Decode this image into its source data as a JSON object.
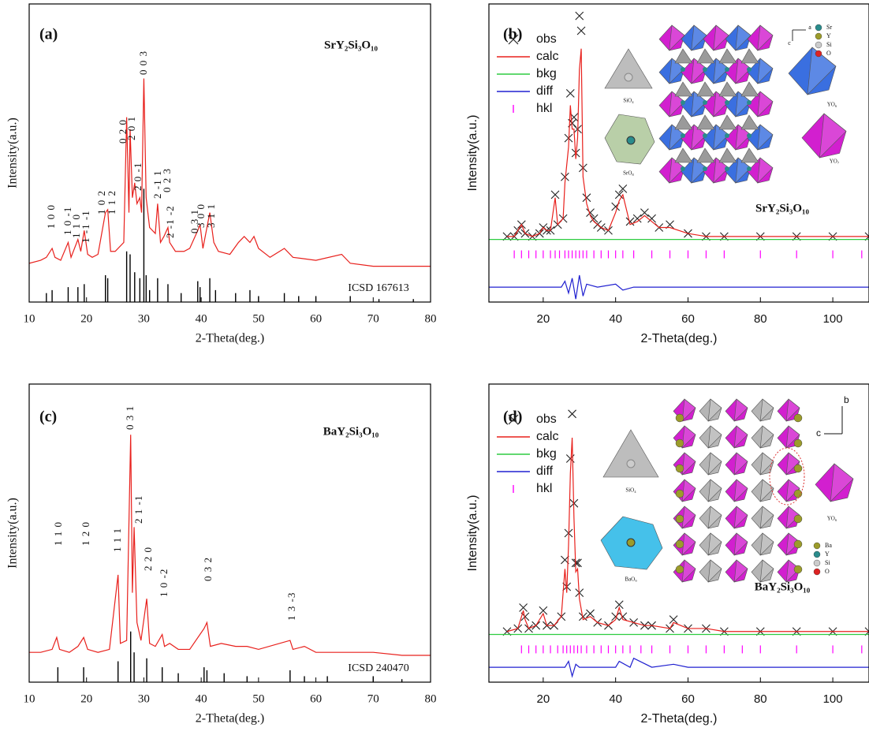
{
  "chart_data": [
    {
      "type": "line",
      "panel": "(a)",
      "title": "SrY₂Si₃O₁₀",
      "xlabel": "2-Theta(deg.)",
      "ylabel": "Intensity(a.u.)",
      "reference": "ICSD 167613",
      "xlim": [
        10,
        80
      ],
      "xticks": [
        10,
        20,
        30,
        40,
        50,
        60,
        70,
        80
      ],
      "ylim": [
        0,
        100
      ],
      "annotations": [
        "1 0 0",
        "1 0 -1",
        "1 1 0",
        "1 -1 -1",
        "1 0 2",
        "1 1 2",
        "0 2 0",
        "2 0 1",
        "0 0 3",
        "2 0 -1",
        "2 -1 1",
        "0 2 3",
        "2 -1 -2",
        "0 3 1",
        "3 0 0",
        "3 1 1"
      ],
      "series": [
        {
          "kind": "line",
          "color": "#e8201c",
          "x": [
            10,
            12,
            13,
            14,
            14.5,
            15.5,
            16.8,
            17.3,
            18.5,
            19,
            19.6,
            20.2,
            21,
            22,
            23.3,
            23.7,
            24.2,
            25,
            26.5,
            27,
            27.4,
            27.6,
            28,
            28.4,
            28.8,
            29.3,
            29.6,
            30,
            30.4,
            31,
            32,
            32.4,
            32.9,
            33.5,
            34.2,
            34.5,
            35.5,
            37,
            38,
            39.4,
            39.8,
            40.3,
            41.5,
            42.2,
            43,
            45,
            46.5,
            47.5,
            48.5,
            49.2,
            50,
            52,
            54.5,
            56,
            60,
            64.5,
            66,
            70,
            75,
            80
          ],
          "values": [
            13,
            14,
            15,
            18,
            15,
            14,
            20,
            15,
            21,
            17,
            24,
            16,
            15,
            16,
            30,
            31,
            17,
            17,
            20,
            62,
            30,
            58,
            35,
            40,
            33,
            35,
            30,
            75,
            35,
            25,
            23,
            33,
            20,
            22,
            25,
            20,
            17,
            17,
            18,
            24,
            26,
            18,
            30,
            20,
            17,
            16,
            20,
            22,
            20,
            22,
            18,
            15,
            18,
            15,
            14,
            16,
            13,
            12,
            12,
            12
          ]
        },
        {
          "kind": "stick",
          "color": "#000000",
          "x": [
            13,
            14,
            16.8,
            18.5,
            19.6,
            23.3,
            23.7,
            27,
            27.6,
            28.4,
            29.3,
            30,
            30.4,
            31,
            32.4,
            34.2,
            36.5,
            39.4,
            39.8,
            41.5,
            42.5,
            46,
            48.5,
            50,
            54.5,
            57,
            60,
            66,
            71,
            77
          ],
          "values": [
            3,
            4,
            5,
            5,
            6,
            9,
            8,
            17,
            16,
            10,
            8,
            38,
            9,
            4,
            8,
            6,
            3,
            7,
            5,
            8,
            4,
            3,
            4,
            2,
            3,
            2,
            2,
            2,
            1,
            1
          ]
        }
      ]
    },
    {
      "type": "line",
      "panel": "(b)",
      "title": "SrY₂Si₃O₁₀",
      "xlabel": "2-Theta(deg.)",
      "ylabel": "Intensity(a.u.)",
      "xlim": [
        5,
        110
      ],
      "xticks": [
        20,
        40,
        60,
        80,
        100
      ],
      "ylim": [
        0,
        100
      ],
      "legend": "upper left",
      "inset_labels": [
        "SiO₄",
        "SrO₈",
        "YO₆",
        "YO₇",
        "a",
        "c",
        "Sr",
        "Y",
        "Si",
        "O"
      ],
      "series": [
        {
          "name": "obs",
          "kind": "marker",
          "color": "#222222",
          "x": [
            10,
            12,
            13,
            14,
            15,
            17,
            19,
            20,
            21,
            22,
            23.3,
            24,
            25.5,
            26,
            27,
            27.5,
            28,
            28.5,
            29,
            29.5,
            30,
            30.5,
            31,
            32,
            33,
            34,
            35,
            36,
            38,
            40,
            41,
            42,
            44,
            46,
            48,
            50,
            52,
            55,
            60,
            65,
            70,
            80,
            90,
            100,
            110
          ],
          "values": [
            22,
            22,
            24,
            26,
            23,
            22,
            23,
            25,
            24,
            24,
            36,
            26,
            28,
            42,
            55,
            70,
            60,
            62,
            50,
            58,
            96,
            91,
            45,
            35,
            30,
            28,
            26,
            25,
            24,
            32,
            36,
            38,
            27,
            28,
            30,
            28,
            25,
            26,
            23,
            22,
            22,
            22,
            22,
            22,
            22
          ]
        },
        {
          "name": "calc",
          "kind": "line",
          "color": "#e8201c",
          "x": [
            10,
            12,
            13,
            14,
            15,
            17,
            19,
            20,
            21,
            22,
            23.3,
            24,
            25.5,
            26,
            27,
            27.5,
            28,
            28.5,
            29,
            29.5,
            30,
            30.5,
            31,
            32,
            33,
            34,
            35,
            36,
            38,
            40,
            41,
            42,
            44,
            46,
            48,
            50,
            52,
            55,
            60,
            65,
            70,
            80,
            90,
            100,
            110
          ],
          "values": [
            22,
            22,
            24,
            26,
            23,
            22,
            23,
            25,
            24,
            24,
            35,
            26,
            28,
            40,
            52,
            66,
            58,
            58,
            48,
            55,
            78,
            85,
            42,
            33,
            29,
            27,
            26,
            25,
            24,
            30,
            34,
            36,
            26,
            27,
            29,
            27,
            25,
            25,
            23,
            22,
            22,
            22,
            22,
            22,
            22
          ]
        },
        {
          "name": "bkg",
          "kind": "line",
          "color": "#2ecc40",
          "x": [
            5,
            110
          ],
          "values": [
            21,
            21
          ]
        },
        {
          "name": "diff",
          "kind": "line",
          "color": "#2020d0",
          "x": [
            5,
            20,
            25,
            26,
            27,
            28,
            29,
            30,
            31,
            32,
            35,
            40,
            42,
            45,
            60,
            80,
            110
          ],
          "values": [
            5,
            5,
            5,
            7,
            3,
            8,
            1,
            9,
            2,
            6,
            5,
            6,
            4,
            5,
            5,
            5,
            5
          ]
        },
        {
          "name": "hkl",
          "kind": "tick",
          "color": "#ff00ff",
          "x": [
            12,
            14,
            16,
            18,
            20,
            22,
            23.3,
            24.5,
            26,
            27,
            28,
            29,
            30,
            31,
            32,
            34,
            36,
            38,
            40,
            42,
            45,
            50,
            55,
            60,
            65,
            70,
            80,
            90,
            100,
            108
          ],
          "values": [
            16,
            16,
            16,
            16,
            16,
            16,
            16,
            16,
            16,
            16,
            16,
            16,
            16,
            16,
            16,
            16,
            16,
            16,
            16,
            16,
            16,
            16,
            16,
            16,
            16,
            16,
            16,
            16,
            16,
            16
          ]
        }
      ]
    },
    {
      "type": "line",
      "panel": "(c)",
      "title": "BaY₂Si₃O₁₀",
      "xlabel": "2-Theta(deg.)",
      "ylabel": "Intensity(a.u.)",
      "reference": "ICSD 240470",
      "xlim": [
        10,
        80
      ],
      "xticks": [
        10,
        20,
        30,
        40,
        50,
        60,
        70,
        80
      ],
      "ylim": [
        0,
        100
      ],
      "annotations": [
        "1 1 0",
        "1 2 0",
        "1 1 1",
        "0 3 1",
        "2 1 -1",
        "2 2 0",
        "1 0 -2",
        "0 3 2",
        "1 3 -3"
      ],
      "series": [
        {
          "kind": "line",
          "color": "#e8201c",
          "x": [
            10,
            12,
            14,
            14.8,
            15.3,
            17,
            18.5,
            19.5,
            20.2,
            22,
            24,
            25.5,
            25.9,
            27,
            27.7,
            28,
            28.3,
            28.8,
            29.5,
            30.5,
            31,
            32,
            33.2,
            33.6,
            34.5,
            36,
            38,
            40.5,
            41,
            41.6,
            43.5,
            46,
            48,
            50,
            55.5,
            56,
            58,
            60,
            65,
            70,
            75,
            80
          ],
          "values": [
            10,
            10,
            11,
            15,
            11,
            10,
            12,
            15,
            11,
            10,
            11,
            36,
            13,
            14,
            83,
            30,
            52,
            20,
            14,
            28,
            13,
            12,
            16,
            12,
            13,
            11,
            11,
            18,
            20,
            12,
            13,
            12,
            12,
            11,
            14,
            11,
            12,
            10,
            10,
            10,
            9,
            9
          ]
        },
        {
          "kind": "stick",
          "color": "#000000",
          "x": [
            15,
            19.5,
            25.5,
            27.7,
            28.3,
            30.5,
            33.2,
            36,
            40.5,
            41,
            44,
            48,
            55.5,
            58,
            62,
            70,
            75
          ],
          "values": [
            5,
            5,
            7,
            17,
            10,
            8,
            5,
            3,
            5,
            4,
            3,
            2,
            4,
            2,
            2,
            2,
            1
          ]
        }
      ]
    },
    {
      "type": "line",
      "panel": "(d)",
      "title": "BaY₂Si₃O₁₀",
      "xlabel": "2-Theta(deg.)",
      "ylabel": "Intensity(a.u.)",
      "xlim": [
        5,
        110
      ],
      "xticks": [
        20,
        40,
        60,
        80,
        100
      ],
      "ylim": [
        0,
        100
      ],
      "legend": "upper left",
      "inset_labels": [
        "SiO₄",
        "BaO₉",
        "YO₆",
        "Ba",
        "Y",
        "Si",
        "O",
        "b",
        "c"
      ],
      "series": [
        {
          "name": "obs",
          "kind": "marker",
          "color": "#222222",
          "x": [
            10,
            13,
            14.5,
            15,
            16,
            18,
            20,
            21,
            23,
            25,
            26,
            26.5,
            27,
            27.5,
            28,
            28.5,
            29,
            29.5,
            30,
            31,
            33,
            35,
            38,
            40,
            41,
            42,
            45,
            48,
            50,
            55,
            56,
            60,
            65,
            70,
            80,
            90,
            100,
            110
          ],
          "values": [
            17,
            18,
            25,
            22,
            18,
            19,
            24,
            19,
            19,
            22,
            41,
            32,
            50,
            75,
            90,
            60,
            40,
            40,
            30,
            22,
            23,
            20,
            19,
            22,
            26,
            22,
            20,
            19,
            19,
            18,
            21,
            18,
            18,
            17,
            17,
            17,
            17,
            17
          ]
        },
        {
          "name": "calc",
          "kind": "line",
          "color": "#e8201c",
          "x": [
            10,
            13,
            14.5,
            15,
            16,
            18,
            20,
            21,
            23,
            25,
            26,
            26.5,
            27,
            27.5,
            28,
            28.5,
            29,
            29.5,
            30,
            31,
            33,
            35,
            38,
            40,
            41,
            42,
            45,
            48,
            50,
            55,
            56,
            60,
            65,
            70,
            80,
            90,
            100,
            110
          ],
          "values": [
            17,
            18,
            24,
            21,
            18,
            19,
            23,
            19,
            19,
            22,
            38,
            30,
            46,
            70,
            82,
            55,
            37,
            38,
            28,
            21,
            22,
            20,
            19,
            21,
            25,
            21,
            20,
            19,
            19,
            18,
            20,
            18,
            18,
            17,
            17,
            17,
            17,
            17
          ]
        },
        {
          "name": "bkg",
          "kind": "line",
          "color": "#2ecc40",
          "x": [
            5,
            110
          ],
          "values": [
            16,
            16
          ]
        },
        {
          "name": "diff",
          "kind": "line",
          "color": "#2020d0",
          "x": [
            5,
            20,
            26,
            27,
            28,
            29,
            30,
            40,
            41,
            44,
            45,
            50,
            56,
            60,
            110
          ],
          "values": [
            5,
            5,
            5,
            7,
            2,
            6,
            5,
            5,
            7,
            5,
            8,
            5,
            6,
            5,
            5
          ]
        },
        {
          "name": "hkl",
          "kind": "tick",
          "color": "#ff00ff",
          "x": [
            14,
            16,
            18,
            20,
            22,
            24,
            25.5,
            26.5,
            27.5,
            28.5,
            29.5,
            30.5,
            32,
            34,
            36,
            38,
            40,
            42,
            44,
            47,
            50,
            55,
            60,
            65,
            70,
            75,
            80,
            90,
            100,
            108
          ],
          "values": [
            11,
            11,
            11,
            11,
            11,
            11,
            11,
            11,
            11,
            11,
            11,
            11,
            11,
            11,
            11,
            11,
            11,
            11,
            11,
            11,
            11,
            11,
            11,
            11,
            11,
            11,
            11,
            11,
            11,
            11
          ]
        }
      ]
    }
  ]
}
